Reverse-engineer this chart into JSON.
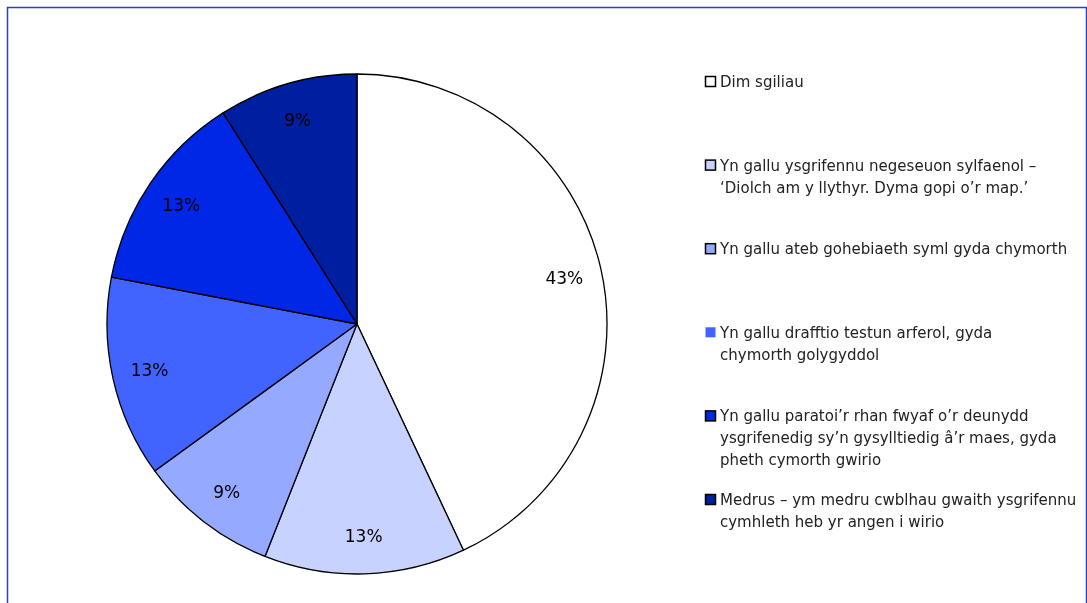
{
  "chart_data": {
    "type": "pie",
    "categories": [
      "Dim sgiliau",
      "Yn gallu ysgrifennu negeseuon sylfaenol – ‘Diolch am y llythyr. Dyma gopi o’r map.’",
      "Yn gallu ateb gohebiaeth syml gyda chymorth",
      "Yn gallu drafftio testun arferol, gyda chymorth golygyddol",
      "Yn gallu paratoi’r rhan fwyaf o’r deunydd ysgrifenedig sy’n gysylltiedig â’r maes, gyda pheth cymorth gwirio",
      "Medrus – ym medru cwblhau gwaith ysgrifennu cymhleth heb yr angen i wirio"
    ],
    "values": [
      43,
      13,
      9,
      13,
      13,
      9
    ],
    "colors": [
      "#ffffff",
      "#c8d2ff",
      "#94a9ff",
      "#4163ff",
      "#0026e6",
      "#001ea0"
    ],
    "value_labels": [
      "43%",
      "13%",
      "9%",
      "13%",
      "13%",
      "9%"
    ],
    "legend": "right"
  }
}
